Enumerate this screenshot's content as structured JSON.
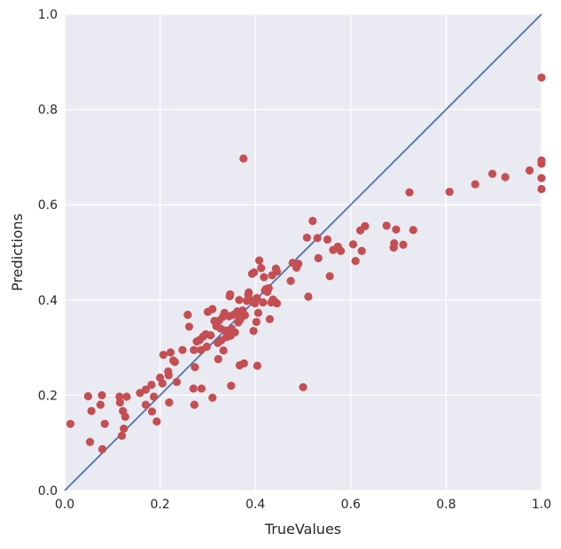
{
  "chart_data": {
    "type": "scatter",
    "title": "",
    "xlabel": "TrueValues",
    "ylabel": "Predictions",
    "xlim": [
      0,
      1
    ],
    "ylim": [
      0,
      1
    ],
    "xticks": [
      "0.0",
      "0.2",
      "0.4",
      "0.6",
      "0.8",
      "1.0"
    ],
    "yticks": [
      "0.0",
      "0.2",
      "0.4",
      "0.6",
      "0.8",
      "1.0"
    ],
    "grid": true,
    "background_color": "#eaeaf2",
    "grid_color": "#ffffff",
    "point_color": "#c44e52",
    "line_color": "#4c72b0",
    "reference_line": {
      "x": [
        0,
        1
      ],
      "y": [
        0,
        1
      ]
    },
    "points": [
      [
        0.012,
        0.14
      ],
      [
        0.049,
        0.198
      ],
      [
        0.053,
        0.102
      ],
      [
        0.056,
        0.167
      ],
      [
        0.075,
        0.18
      ],
      [
        0.078,
        0.2
      ],
      [
        0.079,
        0.087
      ],
      [
        0.084,
        0.14
      ],
      [
        0.115,
        0.197
      ],
      [
        0.116,
        0.185
      ],
      [
        0.12,
        0.115
      ],
      [
        0.122,
        0.167
      ],
      [
        0.124,
        0.13
      ],
      [
        0.127,
        0.155
      ],
      [
        0.13,
        0.197
      ],
      [
        0.158,
        0.205
      ],
      [
        0.17,
        0.18
      ],
      [
        0.17,
        0.212
      ],
      [
        0.182,
        0.222
      ],
      [
        0.183,
        0.166
      ],
      [
        0.187,
        0.197
      ],
      [
        0.193,
        0.145
      ],
      [
        0.2,
        0.237
      ],
      [
        0.205,
        0.225
      ],
      [
        0.207,
        0.285
      ],
      [
        0.217,
        0.25
      ],
      [
        0.218,
        0.242
      ],
      [
        0.219,
        0.185
      ],
      [
        0.222,
        0.29
      ],
      [
        0.228,
        0.273
      ],
      [
        0.231,
        0.27
      ],
      [
        0.235,
        0.228
      ],
      [
        0.247,
        0.295
      ],
      [
        0.258,
        0.369
      ],
      [
        0.261,
        0.344
      ],
      [
        0.27,
        0.214
      ],
      [
        0.271,
        0.295
      ],
      [
        0.272,
        0.18
      ],
      [
        0.273,
        0.259
      ],
      [
        0.277,
        0.313
      ],
      [
        0.283,
        0.316
      ],
      [
        0.286,
        0.295
      ],
      [
        0.287,
        0.214
      ],
      [
        0.29,
        0.323
      ],
      [
        0.296,
        0.328
      ],
      [
        0.298,
        0.302
      ],
      [
        0.3,
        0.375
      ],
      [
        0.306,
        0.326
      ],
      [
        0.31,
        0.381
      ],
      [
        0.31,
        0.195
      ],
      [
        0.314,
        0.356
      ],
      [
        0.318,
        0.345
      ],
      [
        0.321,
        0.31
      ],
      [
        0.322,
        0.276
      ],
      [
        0.324,
        0.357
      ],
      [
        0.327,
        0.34
      ],
      [
        0.328,
        0.315
      ],
      [
        0.332,
        0.365
      ],
      [
        0.333,
        0.294
      ],
      [
        0.335,
        0.373
      ],
      [
        0.337,
        0.336
      ],
      [
        0.339,
        0.322
      ],
      [
        0.343,
        0.324
      ],
      [
        0.345,
        0.366
      ],
      [
        0.346,
        0.408
      ],
      [
        0.347,
        0.412
      ],
      [
        0.348,
        0.325
      ],
      [
        0.349,
        0.22
      ],
      [
        0.35,
        0.34
      ],
      [
        0.354,
        0.369
      ],
      [
        0.357,
        0.332
      ],
      [
        0.36,
        0.37
      ],
      [
        0.362,
        0.376
      ],
      [
        0.364,
        0.353
      ],
      [
        0.366,
        0.4
      ],
      [
        0.367,
        0.263
      ],
      [
        0.368,
        0.359
      ],
      [
        0.371,
        0.365
      ],
      [
        0.373,
        0.378
      ],
      [
        0.375,
        0.697
      ],
      [
        0.376,
        0.267
      ],
      [
        0.378,
        0.368
      ],
      [
        0.382,
        0.398
      ],
      [
        0.385,
        0.41
      ],
      [
        0.386,
        0.416
      ],
      [
        0.39,
        0.399
      ],
      [
        0.393,
        0.455
      ],
      [
        0.396,
        0.335
      ],
      [
        0.397,
        0.458
      ],
      [
        0.399,
        0.393
      ],
      [
        0.402,
        0.354
      ],
      [
        0.403,
        0.404
      ],
      [
        0.404,
        0.262
      ],
      [
        0.406,
        0.373
      ],
      [
        0.408,
        0.483
      ],
      [
        0.412,
        0.467
      ],
      [
        0.416,
        0.395
      ],
      [
        0.418,
        0.448
      ],
      [
        0.42,
        0.42
      ],
      [
        0.422,
        0.423
      ],
      [
        0.425,
        0.417
      ],
      [
        0.428,
        0.425
      ],
      [
        0.43,
        0.36
      ],
      [
        0.433,
        0.395
      ],
      [
        0.435,
        0.452
      ],
      [
        0.437,
        0.401
      ],
      [
        0.44,
        0.397
      ],
      [
        0.443,
        0.466
      ],
      [
        0.445,
        0.393
      ],
      [
        0.445,
        0.46
      ],
      [
        0.474,
        0.44
      ],
      [
        0.478,
        0.478
      ],
      [
        0.486,
        0.468
      ],
      [
        0.49,
        0.476
      ],
      [
        0.5,
        0.217
      ],
      [
        0.508,
        0.531
      ],
      [
        0.511,
        0.407
      ],
      [
        0.52,
        0.566
      ],
      [
        0.53,
        0.53
      ],
      [
        0.532,
        0.488
      ],
      [
        0.551,
        0.527
      ],
      [
        0.556,
        0.45
      ],
      [
        0.563,
        0.505
      ],
      [
        0.573,
        0.512
      ],
      [
        0.579,
        0.503
      ],
      [
        0.605,
        0.517
      ],
      [
        0.61,
        0.482
      ],
      [
        0.62,
        0.546
      ],
      [
        0.623,
        0.503
      ],
      [
        0.63,
        0.555
      ],
      [
        0.675,
        0.556
      ],
      [
        0.69,
        0.51
      ],
      [
        0.691,
        0.519
      ],
      [
        0.695,
        0.548
      ],
      [
        0.71,
        0.516
      ],
      [
        0.723,
        0.626
      ],
      [
        0.731,
        0.547
      ],
      [
        0.807,
        0.627
      ],
      [
        0.861,
        0.643
      ],
      [
        0.897,
        0.665
      ],
      [
        0.924,
        0.658
      ],
      [
        0.975,
        0.672
      ],
      [
        1.0,
        0.867
      ],
      [
        1.0,
        0.693
      ],
      [
        1.0,
        0.686
      ],
      [
        1.0,
        0.656
      ],
      [
        1.0,
        0.633
      ]
    ]
  }
}
